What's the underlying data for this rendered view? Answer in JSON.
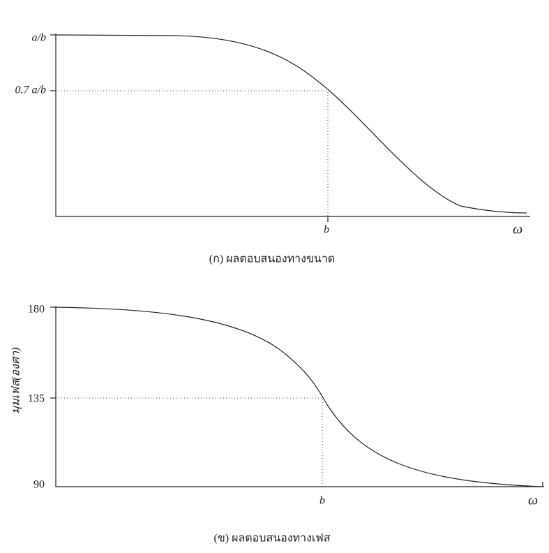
{
  "panels": [
    {
      "y_labels": [
        "a/b",
        "0.7 a/b"
      ],
      "x_labels": [
        "b",
        "ω"
      ],
      "caption": "(ก) ผลตอบสนองทางขนาด"
    },
    {
      "y_axis_title": "มุมเฟส(องศา)",
      "y_labels": [
        "180",
        "135",
        "90"
      ],
      "x_labels": [
        "b",
        "ω"
      ],
      "caption": "(ข) ผลตอบสนองทางเฟส"
    }
  ]
}
